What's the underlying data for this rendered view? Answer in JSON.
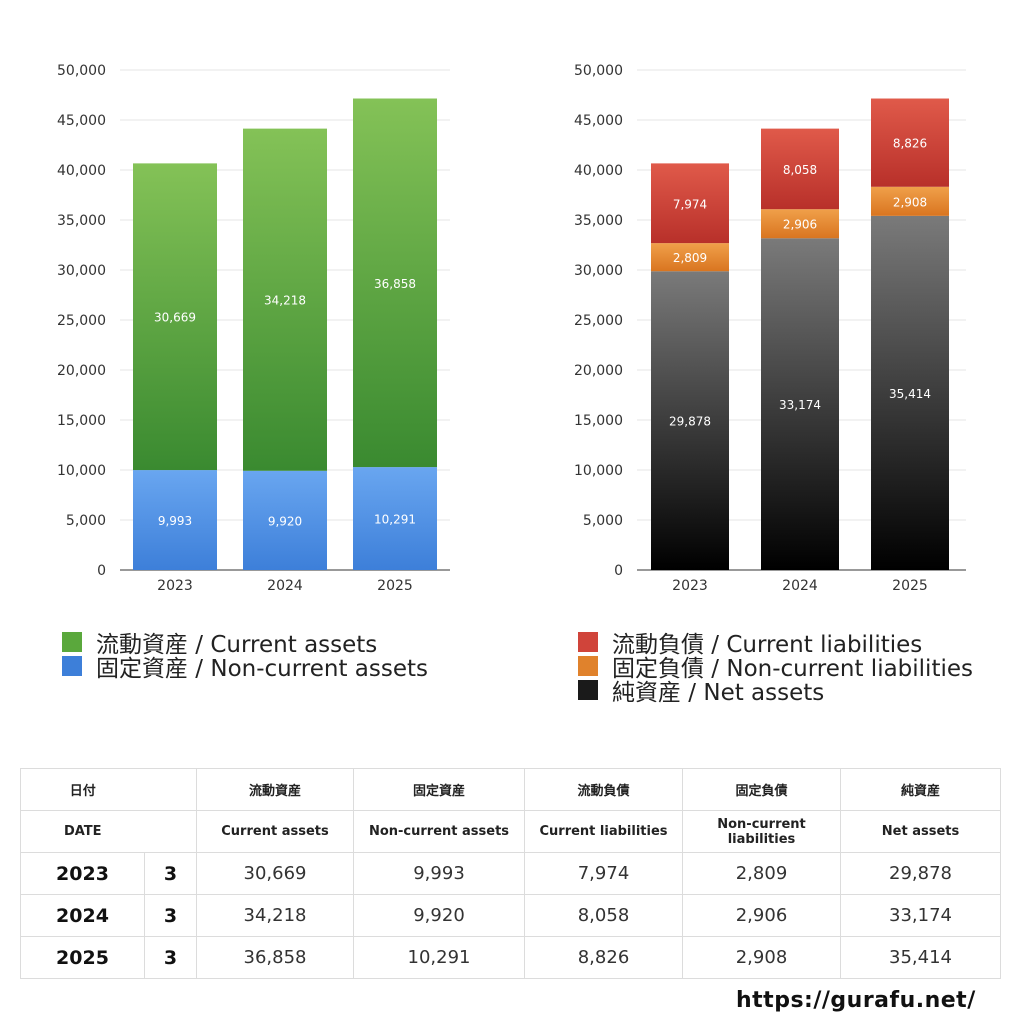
{
  "chart_data": [
    {
      "type": "bar",
      "stacked": true,
      "categories": [
        "2023",
        "2024",
        "2025"
      ],
      "series": [
        {
          "name": "固定資産 / Non-current assets",
          "values": [
            9993,
            9920,
            10291
          ],
          "color": "#3d7fd9",
          "color_light": "#69a6f0"
        },
        {
          "name": "流動資産 / Current assets",
          "values": [
            30669,
            34218,
            36858
          ],
          "color": "#3a8a30",
          "color_light": "#84c257"
        }
      ],
      "ylim": [
        0,
        50000
      ],
      "yticks": [
        "0",
        "5,000",
        "10,000",
        "15,000",
        "20,000",
        "25,000",
        "30,000",
        "35,000",
        "40,000",
        "45,000",
        "50,000"
      ],
      "grid": true
    },
    {
      "type": "bar",
      "stacked": true,
      "categories": [
        "2023",
        "2024",
        "2025"
      ],
      "series": [
        {
          "name": "純資産 / Net assets",
          "values": [
            29878,
            33174,
            35414
          ],
          "color": "#000000",
          "color_light": "#7a7a7a"
        },
        {
          "name": "固定負債 / Non-current liabilities",
          "values": [
            2809,
            2906,
            2908
          ],
          "color": "#d97520",
          "color_light": "#f0a04a"
        },
        {
          "name": "流動負債 / Current liabilities",
          "values": [
            7974,
            8058,
            8826
          ],
          "color": "#b8302a",
          "color_light": "#e05a4a"
        }
      ],
      "ylim": [
        0,
        50000
      ],
      "yticks": [
        "0",
        "5,000",
        "10,000",
        "15,000",
        "20,000",
        "25,000",
        "30,000",
        "35,000",
        "40,000",
        "45,000",
        "50,000"
      ],
      "grid": true
    }
  ],
  "legend_left": [
    {
      "label": "流動資産 / Current assets",
      "color": "#5aa83c"
    },
    {
      "label": "固定資産 / Non-current assets",
      "color": "#3d7fd9"
    }
  ],
  "legend_right": [
    {
      "label": "流動負債 / Current liabilities",
      "color": "#d0443a"
    },
    {
      "label": "固定負債 / Non-current liabilities",
      "color": "#e0822c"
    },
    {
      "label": "純資産 / Net assets",
      "color": "#1a1a1a"
    }
  ],
  "table": {
    "header_jp": {
      "date": "日付",
      "c1": "流動資産",
      "c2": "固定資産",
      "c3": "流動負債",
      "c4": "固定負債",
      "c5": "純資産"
    },
    "header_en": {
      "date": "DATE",
      "c1": "Current assets",
      "c2": "Non-current assets",
      "c3": "Current liabilities",
      "c4": "Non-current liabilities",
      "c5": "Net assets"
    },
    "rows": [
      {
        "year": "2023",
        "month": "3",
        "c1": "30,669",
        "c2": "9,993",
        "c3": "7,974",
        "c4": "2,809",
        "c5": "29,878"
      },
      {
        "year": "2024",
        "month": "3",
        "c1": "34,218",
        "c2": "9,920",
        "c3": "8,058",
        "c4": "2,906",
        "c5": "33,174"
      },
      {
        "year": "2025",
        "month": "3",
        "c1": "36,858",
        "c2": "10,291",
        "c3": "8,826",
        "c4": "2,908",
        "c5": "35,414"
      }
    ]
  },
  "footer": {
    "url": "https://gurafu.net/"
  }
}
